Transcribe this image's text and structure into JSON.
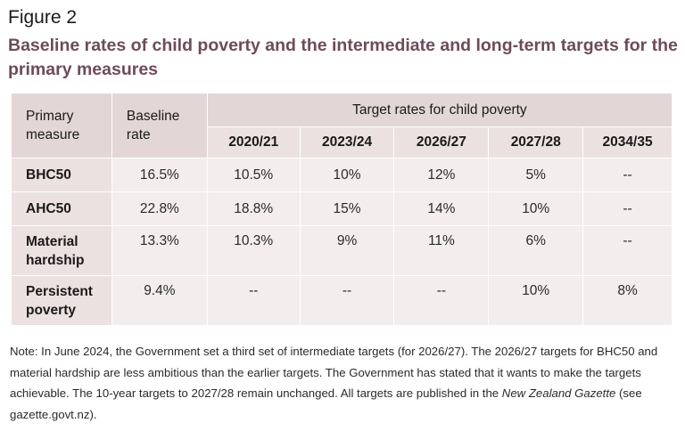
{
  "figure_label": "Figure 2",
  "title": "Baseline rates of child poverty and the intermediate and long-term targets for the primary measures",
  "table": {
    "col_primary": "Primary measure",
    "col_baseline": "Baseline rate",
    "col_targets_group": "Target rates for child poverty",
    "target_years": [
      "2020/21",
      "2023/24",
      "2026/27",
      "2027/28",
      "2034/35"
    ],
    "rows": [
      {
        "measure": "BHC50",
        "baseline": "16.5%",
        "targets": [
          "10.5%",
          "10%",
          "12%",
          "5%",
          "--"
        ]
      },
      {
        "measure": "AHC50",
        "baseline": "22.8%",
        "targets": [
          "18.8%",
          "15%",
          "14%",
          "10%",
          "--"
        ]
      },
      {
        "measure": "Material hardship",
        "baseline": "13.3%",
        "targets": [
          "10.3%",
          "9%",
          "11%",
          "6%",
          "--"
        ]
      },
      {
        "measure": "Persistent poverty",
        "baseline": "9.4%",
        "targets": [
          "--",
          "--",
          "--",
          "10%",
          "8%"
        ]
      }
    ]
  },
  "note": {
    "text_before": "Note: In June 2024, the Government set a third set of intermediate targets (for 2026/27). The 2026/27 targets for BHC50 and material hardship are less ambitious than the earlier targets. The Government has stated that it wants to make the targets achievable. The 10-year targets to 2027/28 remain unchanged. All targets are published in the ",
    "text_italic": "New Zealand Gazette",
    "text_after": " (see gazette.govt.nz)."
  }
}
